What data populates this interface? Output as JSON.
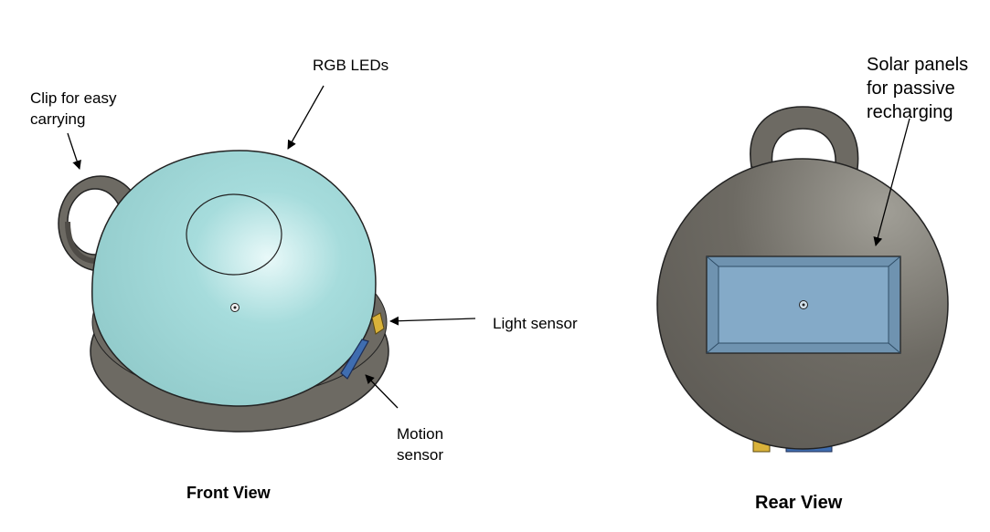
{
  "colors": {
    "dome": "#a6dcdc",
    "dome_highlight": "#e9f9f9",
    "body_gray": "#6d6a63",
    "body_gray_light": "#a19f97",
    "panel_blue": "#84aac8",
    "sensor_yellow": "#d9b23a",
    "sensor_blue": "#3f6db0",
    "outline": "#222222"
  },
  "annotations": {
    "clip": {
      "line1": "Clip for easy",
      "line2": "carrying"
    },
    "rgb_leds": "RGB LEDs",
    "light_sensor": "Light sensor",
    "motion_sensor": {
      "line1": "Motion",
      "line2": "sensor"
    },
    "solar_panels": {
      "line1": "Solar panels",
      "line2": "for passive",
      "line3": "recharging"
    }
  },
  "captions": {
    "front": "Front View",
    "rear": "Rear View"
  }
}
